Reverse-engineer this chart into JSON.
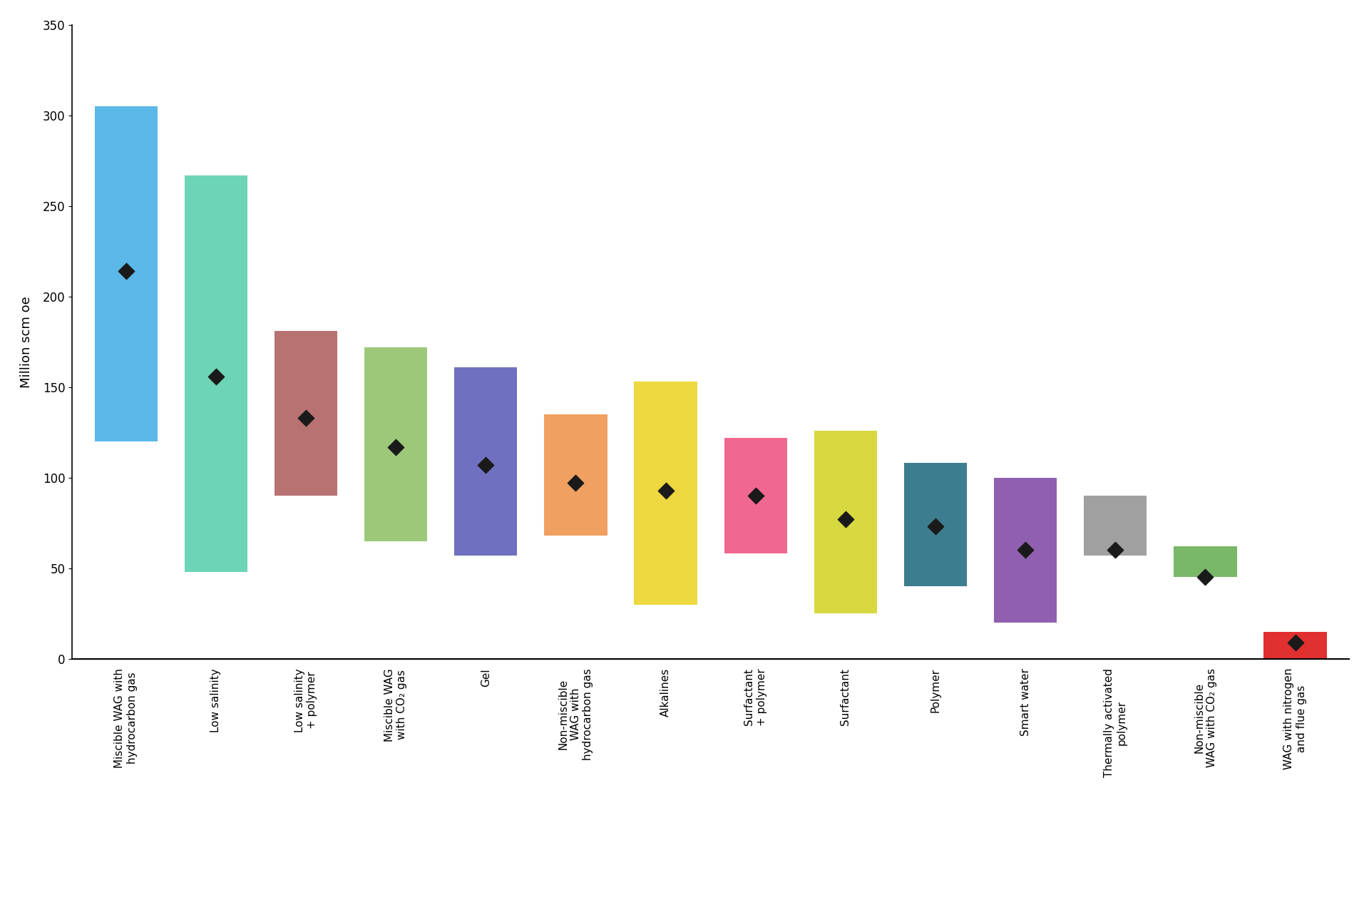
{
  "categories": [
    "Miscible WAG with\nhydrocarbon gas",
    "Low salinity",
    "Low salinity\n+ polymer",
    "Miscible WAG\nwith CO₂ gas",
    "Gel",
    "Non-miscible\nWAG with\nhydrocarbon gas",
    "Alkalines",
    "Surfactant\n+ polymer",
    "Surfactant",
    "Polymer",
    "Smart water",
    "Thermally activated\npolymer",
    "Non-miscible\nWAG with CO₂ gas",
    "WAG with nitrogen\nand flue gas"
  ],
  "bar_low": [
    120,
    48,
    90,
    65,
    57,
    68,
    30,
    58,
    25,
    40,
    20,
    57,
    45,
    0
  ],
  "bar_high": [
    305,
    267,
    181,
    172,
    161,
    135,
    153,
    122,
    126,
    108,
    100,
    90,
    62,
    15
  ],
  "diamond_y": [
    214,
    156,
    133,
    117,
    107,
    97,
    93,
    90,
    77,
    73,
    60,
    60,
    45,
    9
  ],
  "colors": [
    "#5BB8E8",
    "#6DD5B5",
    "#B87272",
    "#9DC87A",
    "#7070C0",
    "#F0A060",
    "#EDD840",
    "#F06890",
    "#D8D840",
    "#3D7D90",
    "#9060B0",
    "#A0A0A0",
    "#78B868",
    "#E03030"
  ],
  "ylabel": "Million scm oe",
  "ylim": [
    0,
    350
  ],
  "yticks": [
    0,
    50,
    100,
    150,
    200,
    250,
    300,
    350
  ],
  "background_color": "#ffffff",
  "diamond_color": "#1a1a1a",
  "diamond_size": 130,
  "bar_width": 0.7,
  "label_fontsize": 11,
  "ylabel_fontsize": 13
}
